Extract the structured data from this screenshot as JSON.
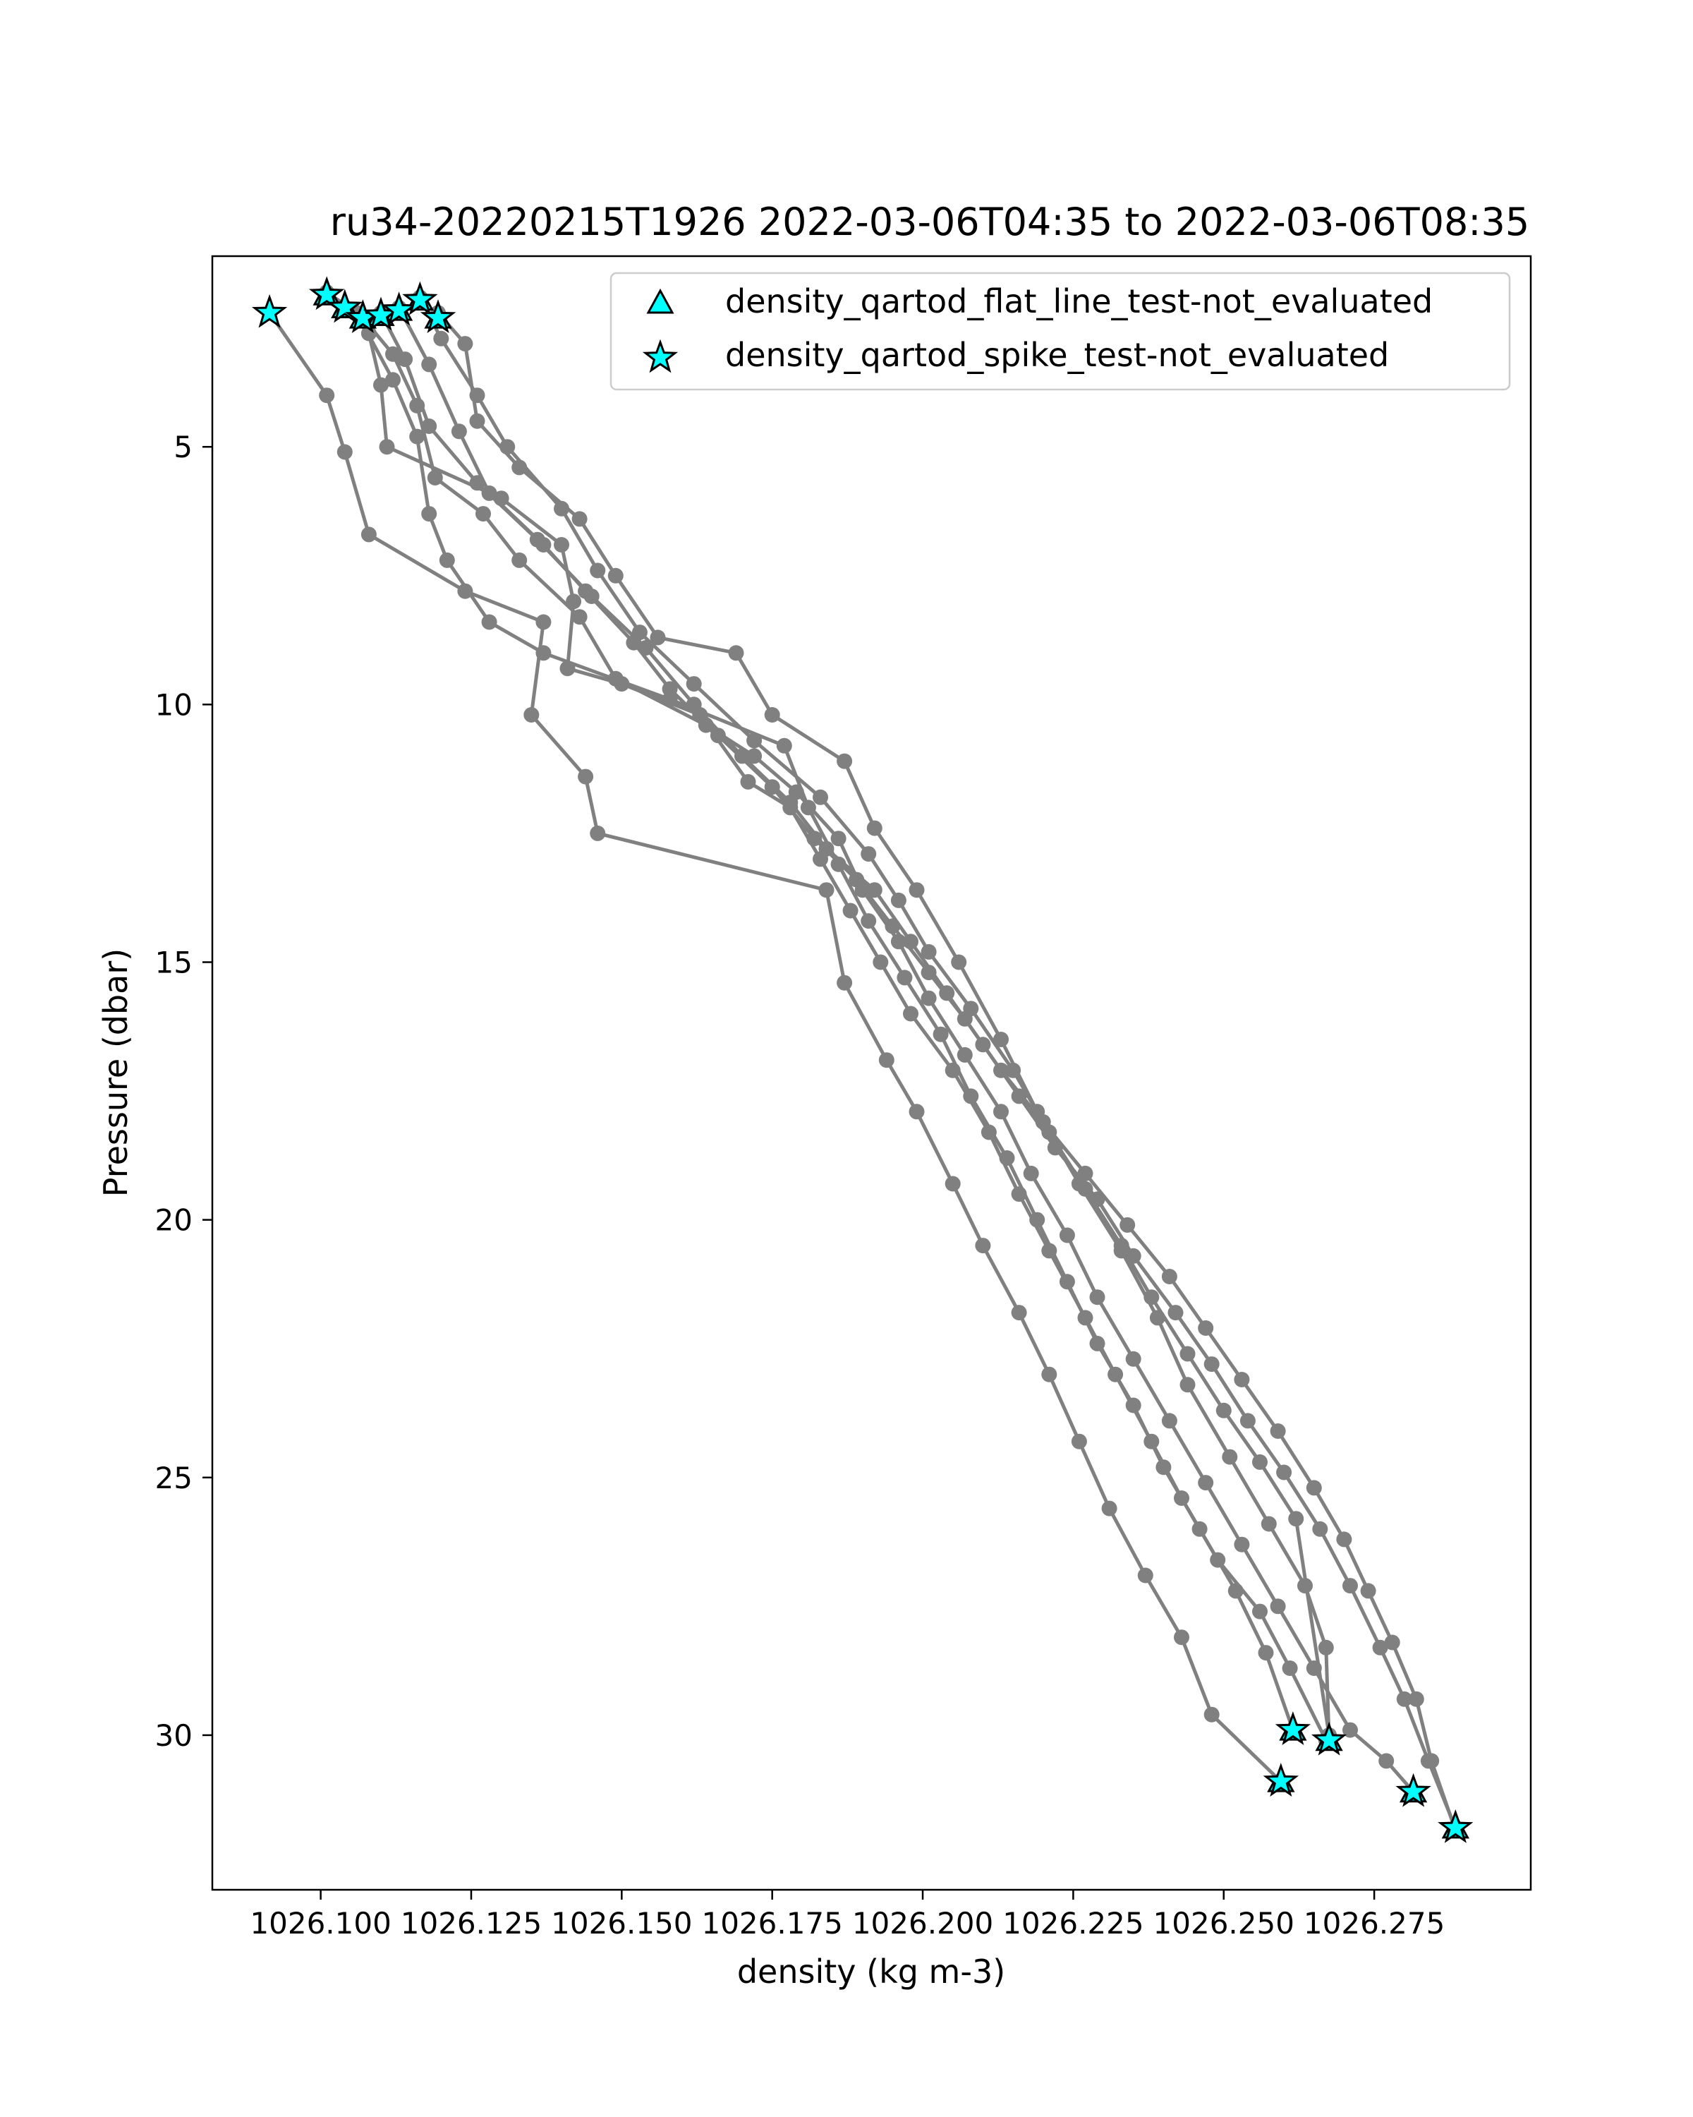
{
  "chart_data": {
    "type": "scatter",
    "title": "ru34-20220215T1926 2022-03-06T04:35 to 2022-03-06T08:35",
    "xlabel": "density (kg m-3)",
    "ylabel": "Pressure (dbar)",
    "xlim": [
      1026.082,
      1026.301
    ],
    "ylim": [
      33.0,
      1.3
    ],
    "y_inverted": true,
    "grid": false,
    "legend_placement": "upper right",
    "x_ticks": [
      1026.1,
      1026.125,
      1026.15,
      1026.175,
      1026.2,
      1026.225,
      1026.25,
      1026.275
    ],
    "x_tick_labels": [
      "1026.100",
      "1026.125",
      "1026.150",
      "1026.175",
      "1026.200",
      "1026.225",
      "1026.250",
      "1026.275"
    ],
    "y_ticks": [
      5,
      10,
      15,
      20,
      25,
      30
    ],
    "y_tick_labels": [
      "5",
      "10",
      "15",
      "20",
      "25",
      "30"
    ],
    "colors": {
      "profile_line": "#808080",
      "marker_fill": "#00ffff",
      "marker_edge": "#000000",
      "axes": "#000000",
      "legend_border": "#cccccc"
    },
    "profiles": [
      [
        [
          1026.0915,
          2.4
        ],
        [
          1026.101,
          4.0
        ],
        [
          1026.104,
          5.1
        ],
        [
          1026.108,
          6.7
        ],
        [
          1026.124,
          7.8
        ],
        [
          1026.137,
          8.4
        ],
        [
          1026.135,
          10.2
        ],
        [
          1026.144,
          11.4
        ],
        [
          1026.146,
          12.5
        ],
        [
          1026.184,
          13.6
        ],
        [
          1026.187,
          15.4
        ],
        [
          1026.194,
          16.9
        ],
        [
          1026.199,
          17.9
        ],
        [
          1026.205,
          19.3
        ],
        [
          1026.21,
          20.5
        ],
        [
          1026.216,
          21.8
        ],
        [
          1026.221,
          23.0
        ],
        [
          1026.226,
          24.3
        ],
        [
          1026.231,
          25.6
        ],
        [
          1026.237,
          26.9
        ],
        [
          1026.243,
          28.1
        ],
        [
          1026.248,
          29.6
        ],
        [
          1026.2595,
          30.9
        ]
      ],
      [
        [
          1026.101,
          2.0
        ],
        [
          1026.106,
          2.4
        ],
        [
          1026.112,
          3.7
        ],
        [
          1026.116,
          4.8
        ],
        [
          1026.118,
          6.3
        ],
        [
          1026.121,
          7.2
        ],
        [
          1026.128,
          8.4
        ],
        [
          1026.137,
          9.0
        ],
        [
          1026.158,
          9.9
        ],
        [
          1026.177,
          10.8
        ],
        [
          1026.181,
          12.0
        ],
        [
          1026.186,
          13.1
        ],
        [
          1026.191,
          14.2
        ],
        [
          1026.197,
          15.3
        ],
        [
          1026.203,
          16.4
        ],
        [
          1026.208,
          17.6
        ],
        [
          1026.214,
          18.8
        ],
        [
          1026.219,
          20.0
        ],
        [
          1026.224,
          21.2
        ],
        [
          1026.229,
          22.4
        ],
        [
          1026.235,
          23.6
        ],
        [
          1026.24,
          24.8
        ],
        [
          1026.246,
          26.0
        ],
        [
          1026.252,
          27.2
        ],
        [
          1026.257,
          28.4
        ],
        [
          1026.2615,
          29.9
        ]
      ],
      [
        [
          1026.104,
          2.3
        ],
        [
          1026.108,
          2.8
        ],
        [
          1026.11,
          3.8
        ],
        [
          1026.111,
          5.0
        ],
        [
          1026.13,
          6.0
        ],
        [
          1026.14,
          6.9
        ],
        [
          1026.142,
          8.0
        ],
        [
          1026.141,
          9.3
        ],
        [
          1026.15,
          9.6
        ],
        [
          1026.163,
          10.2
        ],
        [
          1026.171,
          11.5
        ],
        [
          1026.178,
          12.0
        ],
        [
          1026.183,
          13.0
        ],
        [
          1026.188,
          14.0
        ],
        [
          1026.193,
          15.0
        ],
        [
          1026.198,
          16.0
        ],
        [
          1026.205,
          17.1
        ],
        [
          1026.211,
          18.3
        ],
        [
          1026.216,
          19.5
        ],
        [
          1026.221,
          20.6
        ],
        [
          1026.227,
          21.9
        ],
        [
          1026.232,
          23.0
        ],
        [
          1026.238,
          24.3
        ],
        [
          1026.243,
          25.4
        ],
        [
          1026.249,
          26.6
        ],
        [
          1026.256,
          27.6
        ],
        [
          1026.261,
          28.7
        ],
        [
          1026.267,
          30.1
        ]
      ],
      [
        [
          1026.107,
          2.5
        ],
        [
          1026.112,
          3.2
        ],
        [
          1026.116,
          4.2
        ],
        [
          1026.119,
          5.6
        ],
        [
          1026.127,
          6.3
        ],
        [
          1026.133,
          7.2
        ],
        [
          1026.143,
          8.3
        ],
        [
          1026.149,
          9.5
        ],
        [
          1026.164,
          10.4
        ],
        [
          1026.172,
          11.0
        ],
        [
          1026.179,
          11.7
        ],
        [
          1026.186,
          12.6
        ],
        [
          1026.19,
          13.6
        ],
        [
          1026.196,
          14.6
        ],
        [
          1026.201,
          15.7
        ],
        [
          1026.207,
          16.8
        ],
        [
          1026.213,
          17.9
        ],
        [
          1026.218,
          19.1
        ],
        [
          1026.224,
          20.3
        ],
        [
          1026.229,
          21.5
        ],
        [
          1026.235,
          22.7
        ],
        [
          1026.241,
          23.9
        ],
        [
          1026.247,
          25.1
        ],
        [
          1026.253,
          26.3
        ],
        [
          1026.259,
          27.5
        ],
        [
          1026.265,
          28.7
        ],
        [
          1026.271,
          29.9
        ],
        [
          1026.277,
          30.5
        ],
        [
          1026.2815,
          31.1
        ]
      ],
      [
        [
          1026.11,
          2.4
        ],
        [
          1026.114,
          3.3
        ],
        [
          1026.118,
          4.6
        ],
        [
          1026.126,
          5.7
        ],
        [
          1026.136,
          6.8
        ],
        [
          1026.145,
          7.9
        ],
        [
          1026.154,
          8.9
        ],
        [
          1026.162,
          10.0
        ],
        [
          1026.17,
          11.0
        ],
        [
          1026.178,
          11.9
        ],
        [
          1026.184,
          12.8
        ],
        [
          1026.192,
          13.6
        ],
        [
          1026.198,
          14.6
        ],
        [
          1026.204,
          15.6
        ],
        [
          1026.21,
          16.6
        ],
        [
          1026.216,
          17.6
        ],
        [
          1026.222,
          18.6
        ],
        [
          1026.229,
          19.6
        ],
        [
          1026.235,
          20.7
        ],
        [
          1026.242,
          21.8
        ],
        [
          1026.248,
          22.8
        ],
        [
          1026.254,
          23.9
        ],
        [
          1026.26,
          24.9
        ],
        [
          1026.266,
          26.0
        ],
        [
          1026.271,
          27.1
        ],
        [
          1026.276,
          28.3
        ],
        [
          1026.28,
          29.3
        ],
        [
          1026.284,
          30.5
        ],
        [
          1026.2885,
          31.8
        ]
      ],
      [
        [
          1026.113,
          2.3
        ],
        [
          1026.118,
          3.4
        ],
        [
          1026.123,
          4.7
        ],
        [
          1026.128,
          5.9
        ],
        [
          1026.137,
          6.9
        ],
        [
          1026.144,
          7.8
        ],
        [
          1026.152,
          8.8
        ],
        [
          1026.158,
          9.7
        ],
        [
          1026.166,
          10.6
        ],
        [
          1026.175,
          11.6
        ],
        [
          1026.182,
          12.6
        ],
        [
          1026.189,
          13.4
        ],
        [
          1026.195,
          14.3
        ],
        [
          1026.201,
          15.2
        ],
        [
          1026.207,
          16.1
        ],
        [
          1026.213,
          17.1
        ],
        [
          1026.22,
          18.1
        ],
        [
          1026.227,
          19.1
        ],
        [
          1026.234,
          20.1
        ],
        [
          1026.241,
          21.1
        ],
        [
          1026.247,
          22.1
        ],
        [
          1026.253,
          23.1
        ],
        [
          1026.259,
          24.1
        ],
        [
          1026.265,
          25.2
        ],
        [
          1026.27,
          26.2
        ],
        [
          1026.274,
          27.2
        ],
        [
          1026.278,
          28.2
        ],
        [
          1026.282,
          29.3
        ],
        [
          1026.2845,
          30.5
        ],
        [
          1026.2885,
          31.85
        ]
      ],
      [
        [
          1026.1165,
          2.1
        ],
        [
          1026.12,
          2.9
        ],
        [
          1026.126,
          4.0
        ],
        [
          1026.131,
          5.0
        ],
        [
          1026.14,
          6.2
        ],
        [
          1026.146,
          7.4
        ],
        [
          1026.153,
          8.6
        ],
        [
          1026.162,
          9.6
        ],
        [
          1026.172,
          10.7
        ],
        [
          1026.183,
          11.8
        ],
        [
          1026.191,
          12.9
        ],
        [
          1026.196,
          13.8
        ],
        [
          1026.201,
          14.8
        ],
        [
          1026.208,
          15.9
        ],
        [
          1026.215,
          17.1
        ],
        [
          1026.221,
          18.3
        ],
        [
          1026.227,
          19.4
        ],
        [
          1026.233,
          20.5
        ],
        [
          1026.238,
          21.5
        ],
        [
          1026.244,
          22.6
        ],
        [
          1026.25,
          23.7
        ],
        [
          1026.256,
          24.7
        ],
        [
          1026.262,
          25.8
        ],
        [
          1026.2675,
          30.0
        ]
      ],
      [
        [
          1026.1195,
          2.4
        ],
        [
          1026.124,
          3.0
        ],
        [
          1026.126,
          4.5
        ],
        [
          1026.133,
          5.4
        ],
        [
          1026.143,
          6.4
        ],
        [
          1026.149,
          7.5
        ],
        [
          1026.156,
          8.7
        ],
        [
          1026.169,
          9.0
        ],
        [
          1026.175,
          10.2
        ],
        [
          1026.187,
          11.1
        ],
        [
          1026.192,
          12.4
        ],
        [
          1026.199,
          13.6
        ],
        [
          1026.206,
          15.0
        ],
        [
          1026.213,
          16.5
        ],
        [
          1026.219,
          17.9
        ],
        [
          1026.226,
          19.3
        ],
        [
          1026.233,
          20.6
        ],
        [
          1026.239,
          21.9
        ],
        [
          1026.244,
          23.2
        ],
        [
          1026.251,
          24.6
        ],
        [
          1026.2575,
          25.9
        ],
        [
          1026.2635,
          27.1
        ],
        [
          1026.267,
          28.3
        ],
        [
          1026.2675,
          30.1
        ]
      ]
    ],
    "spike_test_not_evaluated": [
      [
        1026.0915,
        2.4
      ],
      [
        1026.101,
        2.05
      ],
      [
        1026.104,
        2.3
      ],
      [
        1026.107,
        2.5
      ],
      [
        1026.11,
        2.45
      ],
      [
        1026.113,
        2.35
      ],
      [
        1026.1165,
        2.15
      ],
      [
        1026.1195,
        2.5
      ],
      [
        1026.2595,
        30.9
      ],
      [
        1026.2615,
        29.9
      ],
      [
        1026.2675,
        30.1
      ],
      [
        1026.2815,
        31.1
      ],
      [
        1026.2885,
        31.8
      ]
    ],
    "flat_line_test_not_evaluated": [
      [
        1026.101,
        2.05
      ],
      [
        1026.104,
        2.3
      ],
      [
        1026.107,
        2.5
      ],
      [
        1026.11,
        2.45
      ],
      [
        1026.113,
        2.35
      ],
      [
        1026.1165,
        2.15
      ],
      [
        1026.1195,
        2.5
      ],
      [
        1026.2595,
        30.9
      ],
      [
        1026.2615,
        29.9
      ],
      [
        1026.2675,
        30.1
      ],
      [
        1026.2815,
        31.1
      ],
      [
        1026.2885,
        31.8
      ]
    ],
    "legend": [
      {
        "marker": "triangle",
        "label": "density_qartod_flat_line_test-not_evaluated"
      },
      {
        "marker": "star",
        "label": "density_qartod_spike_test-not_evaluated"
      }
    ]
  }
}
